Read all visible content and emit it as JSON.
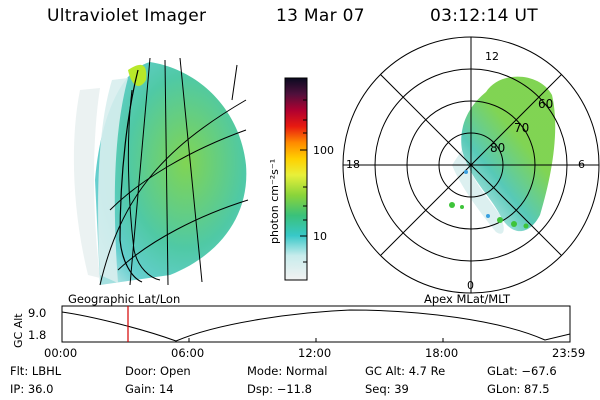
{
  "header": {
    "instrument": "Ultraviolet Imager",
    "date": "13 Mar 07",
    "time": "03:12:14 UT"
  },
  "colorbar": {
    "unit_label": "photon cm⁻²s⁻¹",
    "ticks": [
      "100",
      "10"
    ]
  },
  "polar_plot": {
    "mlt_labels": {
      "top": "12",
      "left": "18",
      "right": "6",
      "bottom": "0"
    },
    "lat_labels": [
      "60",
      "70",
      "80"
    ]
  },
  "left_panel_caption": "Geographic Lat/Lon",
  "right_panel_caption": "Apex MLat/MLT",
  "altitude_plot": {
    "axis_label": "GC Alt",
    "y_ticks": [
      "9.0",
      "1.8"
    ],
    "x_ticks": [
      "00:00",
      "06:00",
      "12:00",
      "18:00",
      "23:59"
    ]
  },
  "info": {
    "row1": [
      {
        "k": "Flt:",
        "v": "LBHL"
      },
      {
        "k": "Door:",
        "v": "Open"
      },
      {
        "k": "Mode:",
        "v": "Normal"
      },
      {
        "k": "GC Alt:",
        "v": "4.7 Re"
      },
      {
        "k": "GLat:",
        "v": "−67.6"
      }
    ],
    "row2": [
      {
        "k": "IP:",
        "v": "36.0"
      },
      {
        "k": "Gain:",
        "v": "14"
      },
      {
        "k": "Dsp:",
        "v": "−11.8"
      },
      {
        "k": "Seq:",
        "v": "39"
      },
      {
        "k": "GLon:",
        "v": "87.5"
      }
    ]
  },
  "colors": {
    "accent_marker": "#d40000"
  }
}
